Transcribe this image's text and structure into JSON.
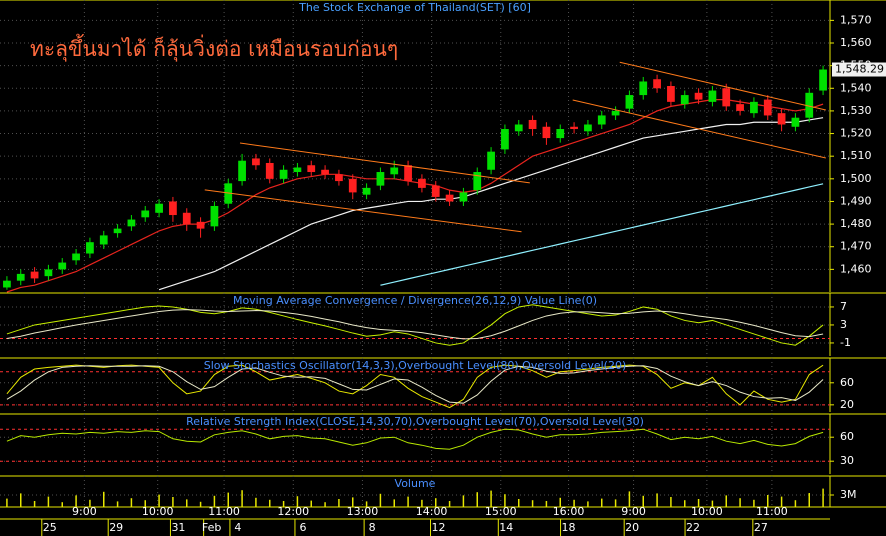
{
  "chart_data": [
    {
      "type": "candlestick",
      "title": "The Stock Exchange of Thailand(SET) [60]",
      "annotation": "ทะลุขึ้นมาได้ ก็ลุ้นวิ่งต่อ เหมือนรอบก่อนๆ",
      "xlim": [
        0,
        60
      ],
      "ylim": [
        1450,
        1579
      ],
      "yticks": [
        {
          "value": 1460,
          "label": "1,460"
        },
        {
          "value": 1470,
          "label": "1,470"
        },
        {
          "value": 1480,
          "label": "1,480"
        },
        {
          "value": 1490,
          "label": "1,490"
        },
        {
          "value": 1500,
          "label": "1,500"
        },
        {
          "value": 1510,
          "label": "1,510"
        },
        {
          "value": 1520,
          "label": "1,520"
        },
        {
          "value": 1530,
          "label": "1,530"
        },
        {
          "value": 1540,
          "label": "1,540"
        },
        {
          "value": 1550,
          "label": "1,550"
        },
        {
          "value": 1560,
          "label": "1,560"
        },
        {
          "value": 1570,
          "label": "1,570"
        }
      ],
      "grid": true,
      "up_color": "#00e000",
      "down_color": "#ff2020",
      "open": [
        1452,
        1455,
        1459,
        1457,
        1460,
        1464,
        1467,
        1471,
        1476,
        1479,
        1483,
        1485,
        1490,
        1485,
        1481,
        1479,
        1489,
        1499,
        1509,
        1507,
        1500,
        1503,
        1506,
        1504,
        1502,
        1500,
        1493,
        1497,
        1502,
        1506,
        1500,
        1497,
        1493,
        1490,
        1495,
        1504,
        1513,
        1521,
        1526,
        1523,
        1518,
        1523,
        1521,
        1524,
        1528,
        1531,
        1537,
        1544,
        1541,
        1533,
        1538,
        1534,
        1540,
        1533,
        1529,
        1535,
        1529,
        1523,
        1527,
        1539
      ],
      "high": [
        1457,
        1460,
        1461,
        1462,
        1465,
        1469,
        1474,
        1477,
        1480,
        1484,
        1488,
        1491,
        1492,
        1487,
        1483,
        1490,
        1500,
        1511,
        1511,
        1509,
        1506,
        1507,
        1508,
        1506,
        1504,
        1502,
        1498,
        1505,
        1508,
        1508,
        1502,
        1499,
        1495,
        1496,
        1505,
        1514,
        1524,
        1526,
        1528,
        1525,
        1524,
        1525,
        1526,
        1530,
        1532,
        1539,
        1545,
        1546,
        1543,
        1539,
        1540,
        1541,
        1542,
        1535,
        1536,
        1537,
        1531,
        1529,
        1540,
        1550
      ],
      "low": [
        1451,
        1453,
        1454,
        1455,
        1458,
        1462,
        1465,
        1469,
        1474,
        1477,
        1481,
        1483,
        1481,
        1477,
        1474,
        1477,
        1487,
        1497,
        1504,
        1498,
        1498,
        1501,
        1501,
        1500,
        1497,
        1491,
        1491,
        1495,
        1500,
        1497,
        1494,
        1490,
        1488,
        1488,
        1493,
        1502,
        1511,
        1519,
        1519,
        1515,
        1516,
        1520,
        1519,
        1522,
        1526,
        1529,
        1535,
        1538,
        1532,
        1531,
        1533,
        1532,
        1530,
        1528,
        1527,
        1526,
        1521,
        1521,
        1525,
        1537
      ],
      "close": [
        1455,
        1458,
        1456,
        1460,
        1463,
        1467,
        1472,
        1475,
        1478,
        1482,
        1486,
        1489,
        1484,
        1480,
        1478,
        1488,
        1498,
        1508,
        1506,
        1500,
        1504,
        1505,
        1503,
        1502,
        1499,
        1494,
        1496,
        1503,
        1505,
        1499,
        1496,
        1492,
        1490,
        1494,
        1503,
        1512,
        1522,
        1524,
        1522,
        1518,
        1522,
        1522,
        1524,
        1528,
        1530,
        1537,
        1543,
        1540,
        1534,
        1537,
        1535,
        1539,
        1532,
        1530,
        1534,
        1528,
        1524,
        1527,
        1538,
        1548.29
      ],
      "last_value_label": "1,548.29",
      "series": [
        {
          "color": "#e8241e",
          "values": [
            1450,
            1452,
            1453,
            1455,
            1457,
            1459,
            1462,
            1465,
            1468,
            1471,
            1474,
            1477,
            1479,
            1480,
            1480,
            1482,
            1485,
            1489,
            1493,
            1496,
            1498,
            1500,
            1501,
            1502,
            1502,
            1501,
            1500,
            1500,
            1500,
            1499,
            1498,
            1497,
            1495,
            1494,
            1495,
            1498,
            1502,
            1506,
            1510,
            1512,
            1514,
            1516,
            1518,
            1520,
            1522,
            1524,
            1527,
            1530,
            1532,
            1533,
            1534,
            1535,
            1535,
            1534,
            1533,
            1532,
            1531,
            1530,
            1531,
            1533
          ]
        },
        {
          "color": "#f0f0f0",
          "values": [
            null,
            null,
            null,
            null,
            null,
            null,
            null,
            null,
            null,
            null,
            null,
            1451,
            1453,
            1455,
            1457,
            1459,
            1462,
            1465,
            1468,
            1471,
            1474,
            1477,
            1480,
            1482,
            1484,
            1486,
            1487,
            1488,
            1489,
            1490,
            1490,
            1491,
            1491,
            1492,
            1494,
            1496,
            1498,
            1500,
            1502,
            1504,
            1506,
            1508,
            1510,
            1512,
            1514,
            1516,
            1518,
            1519,
            1520,
            1521,
            1522,
            1523,
            1524,
            1524,
            1525,
            1525,
            1525,
            1525,
            1526,
            1527
          ]
        },
        {
          "color": "#8ff0ff",
          "values": [
            null,
            null,
            null,
            null,
            null,
            null,
            null,
            null,
            null,
            null,
            null,
            null,
            null,
            null,
            null,
            null,
            null,
            null,
            null,
            null,
            null,
            null,
            null,
            null,
            null,
            null,
            null,
            1453,
            1454.4,
            1455.8,
            1457.2,
            1458.6,
            1460,
            1461.4,
            1462.8,
            1464.2,
            1465.6,
            1467,
            1468.4,
            1469.8,
            1471.2,
            1472.6,
            1474,
            1475.4,
            1476.8,
            1478.2,
            1479.6,
            1481,
            1482.4,
            1483.8,
            1485.2,
            1486.6,
            1488,
            1489.4,
            1490.8,
            1492.2,
            1493.6,
            1495,
            1496.4,
            1497.8
          ]
        }
      ],
      "trendline_color": "#ff7a1a",
      "trendlines": [
        {
          "x": [
            17.35,
            38.3
          ],
          "y": [
            1515.8,
            1498.2
          ]
        },
        {
          "x": [
            14.8,
            37.7
          ],
          "y": [
            1495.1,
            1476.6
          ]
        },
        {
          "x": [
            44.8,
            59.7
          ],
          "y": [
            1551.5,
            1530.4
          ]
        },
        {
          "x": [
            41.4,
            59.7
          ],
          "y": [
            1534.8,
            1509.2
          ]
        }
      ]
    },
    {
      "type": "line",
      "title": "Moving Average Convergence / Divergence(26,12,9) Value Line(0)",
      "xlim": [
        0,
        60
      ],
      "ylim": [
        -3.9,
        10.1
      ],
      "yticks": [
        7,
        3,
        -1
      ],
      "grid": true,
      "reference_lines": [
        0
      ],
      "series": [
        {
          "color": "#c8f000",
          "values": [
            1,
            2,
            3,
            3.5,
            4,
            4.5,
            5,
            5.5,
            6,
            6.5,
            7,
            7.2,
            7,
            6.5,
            5.8,
            5.5,
            6,
            6.8,
            6.5,
            5.8,
            5,
            4.2,
            3.5,
            2.8,
            2,
            1.2,
            0.5,
            0.8,
            1.5,
            1,
            0,
            -1,
            -1.5,
            -1,
            1,
            3,
            5.5,
            7,
            7.5,
            7,
            6.5,
            6,
            5.5,
            5,
            5.2,
            6,
            7,
            6.5,
            5,
            4,
            3.5,
            4,
            3,
            2,
            1,
            0,
            -1,
            -1.5,
            0.5,
            3
          ]
        },
        {
          "color": "#e8e8c8",
          "values": [
            0,
            0.5,
            1.2,
            1.8,
            2.4,
            3,
            3.5,
            4,
            4.5,
            5,
            5.5,
            6,
            6.3,
            6.4,
            6.3,
            6.1,
            6,
            6.1,
            6.2,
            6.1,
            5.8,
            5.4,
            4.9,
            4.3,
            3.7,
            3,
            2.4,
            2,
            1.8,
            1.6,
            1.3,
            0.8,
            0.3,
            -0.1,
            0,
            0.6,
            1.6,
            2.8,
            4,
            5,
            5.6,
            5.9,
            5.9,
            5.7,
            5.5,
            5.6,
            5.9,
            6.1,
            5.9,
            5.5,
            5,
            4.6,
            4.2,
            3.6,
            2.9,
            2.1,
            1.3,
            0.6,
            0.4,
            1
          ]
        }
      ]
    },
    {
      "type": "line",
      "title": "Slow Stochastics Oscillator(14,3,3),Overbought Level(80),Oversold Level(20)",
      "xlim": [
        0,
        60
      ],
      "ylim": [
        7,
        105
      ],
      "yticks": [
        60,
        20
      ],
      "grid": true,
      "reference_lines": [
        80,
        20
      ],
      "series": [
        {
          "color": "#e8e800",
          "values": [
            40,
            70,
            85,
            88,
            90,
            92,
            90,
            88,
            91,
            92,
            90,
            88,
            60,
            40,
            45,
            75,
            90,
            92,
            80,
            65,
            70,
            75,
            68,
            60,
            45,
            40,
            55,
            75,
            70,
            50,
            35,
            25,
            15,
            30,
            70,
            88,
            92,
            90,
            82,
            70,
            80,
            82,
            85,
            88,
            90,
            92,
            90,
            75,
            50,
            60,
            55,
            70,
            40,
            20,
            45,
            30,
            25,
            30,
            75,
            92
          ]
        },
        {
          "color": "#e8e8c8",
          "values": [
            30,
            45,
            65,
            80,
            88,
            90,
            91,
            90,
            90,
            90,
            91,
            90,
            80,
            62,
            48,
            53,
            70,
            85,
            87,
            79,
            72,
            70,
            71,
            68,
            58,
            48,
            47,
            57,
            67,
            65,
            52,
            37,
            25,
            23,
            38,
            63,
            83,
            90,
            88,
            81,
            77,
            78,
            82,
            85,
            88,
            90,
            91,
            86,
            72,
            62,
            55,
            62,
            55,
            43,
            35,
            32,
            33,
            28,
            43,
            66
          ]
        }
      ]
    },
    {
      "type": "line",
      "title": "Relative Strength Index(CLOSE,14,30,70),Overbought Level(70),Oversold Level(30)",
      "xlim": [
        0,
        60
      ],
      "ylim": [
        14,
        89
      ],
      "yticks": [
        60,
        30
      ],
      "grid": true,
      "reference_lines": [
        70,
        30
      ],
      "series": [
        {
          "color": "#b8e800",
          "values": [
            55,
            62,
            60,
            63,
            65,
            64,
            66,
            65,
            67,
            66,
            68,
            67,
            58,
            55,
            54,
            63,
            66,
            68,
            64,
            58,
            61,
            62,
            59,
            58,
            54,
            50,
            53,
            59,
            60,
            53,
            50,
            46,
            45,
            50,
            60,
            66,
            70,
            69,
            64,
            60,
            63,
            63,
            64,
            66,
            67,
            68,
            70,
            64,
            57,
            60,
            58,
            61,
            55,
            52,
            56,
            51,
            49,
            52,
            61,
            66
          ]
        }
      ]
    },
    {
      "type": "bar",
      "title": "Volume",
      "xlim": [
        0,
        60
      ],
      "ylim": [
        0,
        7750000
      ],
      "yticks": [
        {
          "value": 3000000,
          "label": "3M"
        }
      ],
      "grid": true,
      "color": "#e8e800",
      "values": [
        2100000,
        3400000,
        1500000,
        2600000,
        1200000,
        2900000,
        1800000,
        3800000,
        1400000,
        2200000,
        1700000,
        3100000,
        2500000,
        1900000,
        1300000,
        2800000,
        3600000,
        4200000,
        2300000,
        1800000,
        1500000,
        2700000,
        1600000,
        1200000,
        2000000,
        2400000,
        1400000,
        3300000,
        1900000,
        2600000,
        1800000,
        2200000,
        1500000,
        2900000,
        3700000,
        4100000,
        3200000,
        2000000,
        1700000,
        1500000,
        2300000,
        1800000,
        1400000,
        2100000,
        1900000,
        3900000,
        2800000,
        3400000,
        2500000,
        1700000,
        2000000,
        1600000,
        2900000,
        2200000,
        1800000,
        3000000,
        2600000,
        1700000,
        3500000,
        4600000
      ],
      "xticks": [
        {
          "value": 6.1,
          "label": "9:00"
        },
        {
          "value": 11.4,
          "label": "10:00"
        },
        {
          "value": 16.2,
          "label": "11:00"
        },
        {
          "value": 21.2,
          "label": "12:00"
        },
        {
          "value": 26.2,
          "label": "13:00"
        },
        {
          "value": 31.2,
          "label": "14:00"
        },
        {
          "value": 36.2,
          "label": "15:00"
        },
        {
          "value": 41.1,
          "label": "16:00"
        },
        {
          "value": 45.8,
          "label": "9:00"
        },
        {
          "value": 51.1,
          "label": "10:00"
        },
        {
          "value": 55.8,
          "label": "11:00"
        }
      ],
      "date_ticks": [
        {
          "value": 3.6,
          "label": "25"
        },
        {
          "value": 8.4,
          "label": "29"
        },
        {
          "value": 12.9,
          "label": "31"
        },
        {
          "value": 15.3,
          "label": "Feb"
        },
        {
          "value": 17.2,
          "label": "4"
        },
        {
          "value": 21.9,
          "label": "6"
        },
        {
          "value": 26.9,
          "label": "8"
        },
        {
          "value": 31.7,
          "label": "12"
        },
        {
          "value": 36.6,
          "label": "14"
        },
        {
          "value": 41.1,
          "label": "18"
        },
        {
          "value": 45.7,
          "label": "20"
        },
        {
          "value": 50.1,
          "label": "22"
        },
        {
          "value": 55.0,
          "label": "27"
        }
      ]
    }
  ]
}
